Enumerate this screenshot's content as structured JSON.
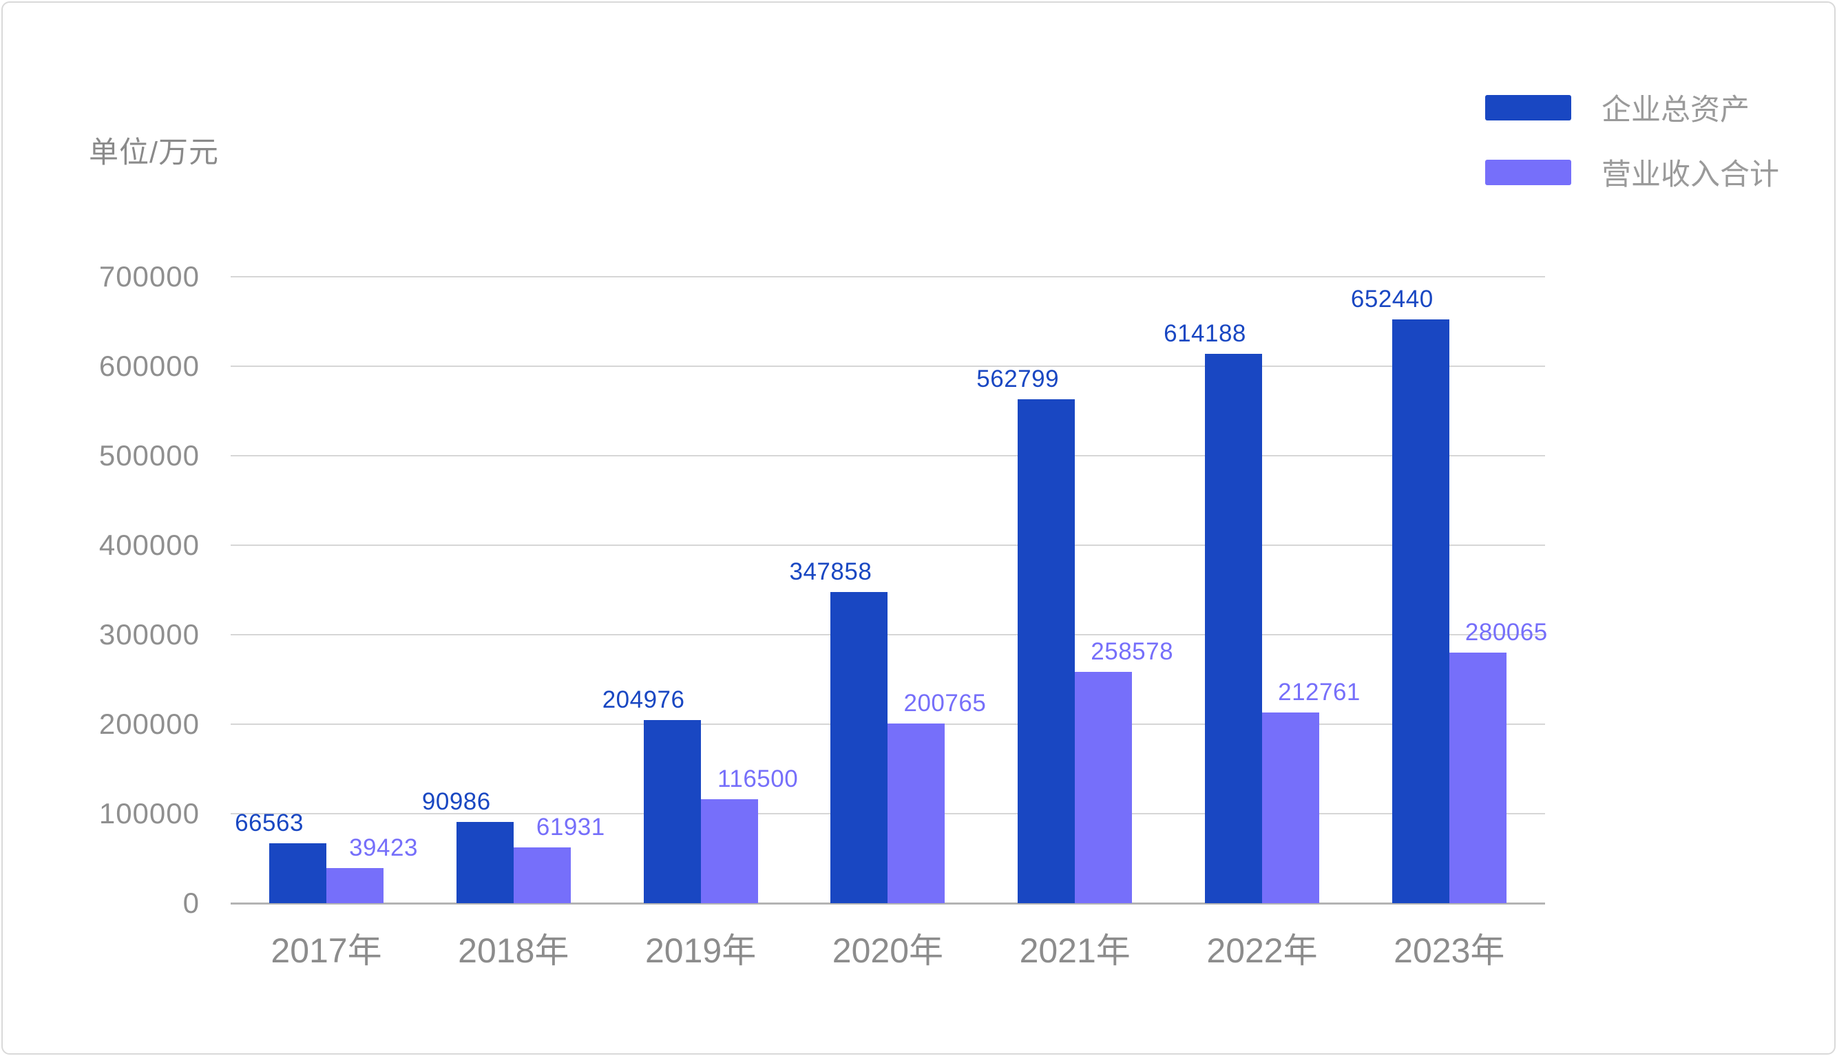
{
  "unit_label": "单位/万元",
  "legend": {
    "items": [
      {
        "label": "企业总资产",
        "color": "#1947c2"
      },
      {
        "label": "营业收入合计",
        "color": "#766ffa"
      }
    ]
  },
  "chart_data": {
    "type": "bar",
    "title": "",
    "xlabel": "",
    "ylabel": "单位/万元",
    "categories": [
      "2017年",
      "2018年",
      "2019年",
      "2020年",
      "2021年",
      "2022年",
      "2023年"
    ],
    "series": [
      {
        "name": "企业总资产",
        "color": "#1947c2",
        "values": [
          66563,
          90986,
          204976,
          347858,
          562799,
          614188,
          652440
        ]
      },
      {
        "name": "营业收入合计",
        "color": "#766ffa",
        "values": [
          39423,
          61931,
          116500,
          200765,
          258578,
          212761,
          280065
        ]
      }
    ],
    "ylim": [
      0,
      700000
    ],
    "ytick_step": 100000,
    "yticks": [
      "0",
      "100000",
      "200000",
      "300000",
      "400000",
      "500000",
      "600000",
      "700000"
    ],
    "grid": true,
    "legend_position": "top-right",
    "value_labels_shown": true
  }
}
